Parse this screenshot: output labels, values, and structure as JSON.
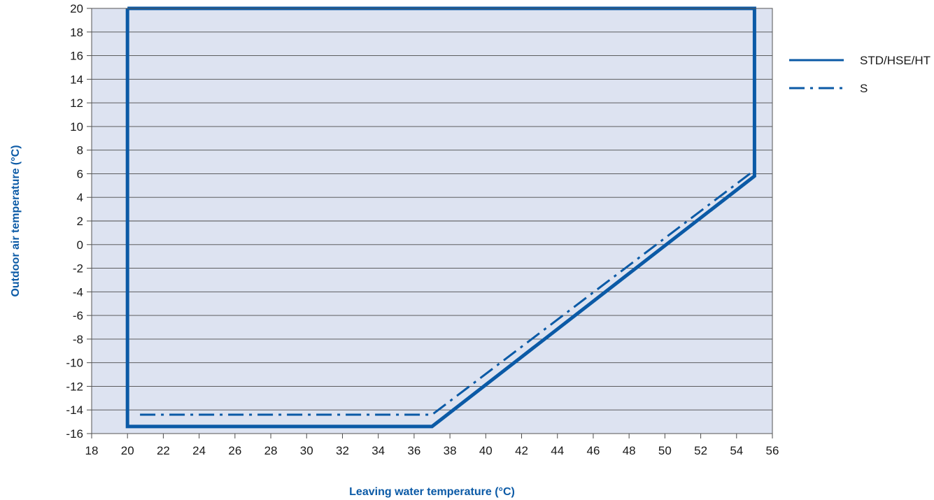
{
  "chart_data": {
    "type": "line",
    "xlabel": "Leaving water temperature (°C)",
    "ylabel": "Outdoor air temperature (°C)",
    "xlim": [
      18,
      56
    ],
    "ylim": [
      -16,
      20
    ],
    "xticks": [
      18,
      20,
      22,
      24,
      26,
      28,
      30,
      32,
      34,
      36,
      38,
      40,
      42,
      44,
      46,
      48,
      50,
      52,
      54,
      56
    ],
    "yticks": [
      20,
      18,
      16,
      14,
      12,
      10,
      8,
      6,
      4,
      2,
      0,
      -2,
      -4,
      -6,
      -8,
      -10,
      -12,
      -14,
      -16
    ],
    "grid": "horizontal",
    "legend_position": "right",
    "colors": {
      "plot_bg": "#dde3f1",
      "line": "#0b5aa6",
      "grid": "#4a4a4a",
      "axis_title": "#0b5aa6"
    },
    "series": [
      {
        "name": "STD/HSE/HT",
        "style": "solid",
        "points": [
          [
            20,
            20
          ],
          [
            55,
            20
          ],
          [
            55,
            5.8
          ],
          [
            37,
            -15.4
          ],
          [
            20,
            -15.4
          ],
          [
            20,
            20
          ]
        ]
      },
      {
        "name": "S",
        "style": "dash-dot",
        "points": [
          [
            20.7,
            -14.4
          ],
          [
            37,
            -14.4
          ],
          [
            55,
            6.3
          ]
        ]
      }
    ]
  }
}
